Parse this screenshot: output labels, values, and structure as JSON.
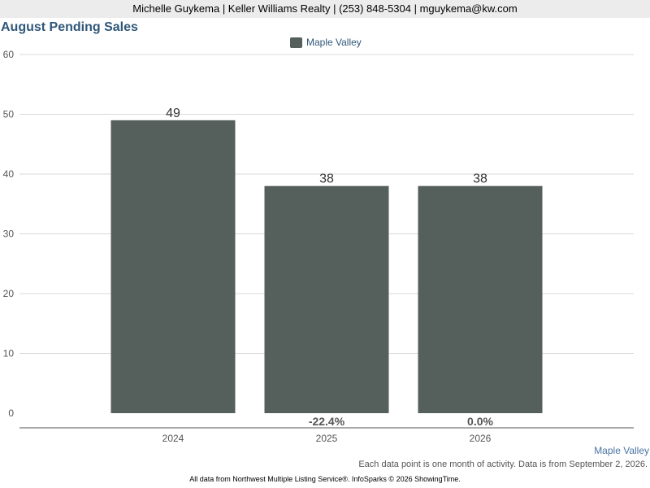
{
  "header": {
    "agent_line": "Michelle Guykema | Keller Williams Realty | (253) 848-5304 | mguykema@kw.com"
  },
  "chart_data": {
    "type": "bar",
    "title": "August Pending Sales",
    "categories": [
      "2024",
      "2025",
      "2026"
    ],
    "series": [
      {
        "name": "Maple Valley",
        "values": [
          49,
          38,
          38
        ],
        "color": "#555f5b"
      }
    ],
    "change_labels": [
      "",
      "-22.4%",
      "0.0%"
    ],
    "ylim": [
      0,
      60
    ],
    "yticks": [
      0,
      10,
      20,
      30,
      40,
      50,
      60
    ],
    "grid": true,
    "legend": "top-center",
    "xlabel": "",
    "ylabel": ""
  },
  "region_label": "Maple Valley",
  "note": "Each data point is one month of activity. Data is from September 2, 2026.",
  "footer": "All data from Northwest Multiple Listing Service®. InfoSparks © 2026 ShowingTime."
}
